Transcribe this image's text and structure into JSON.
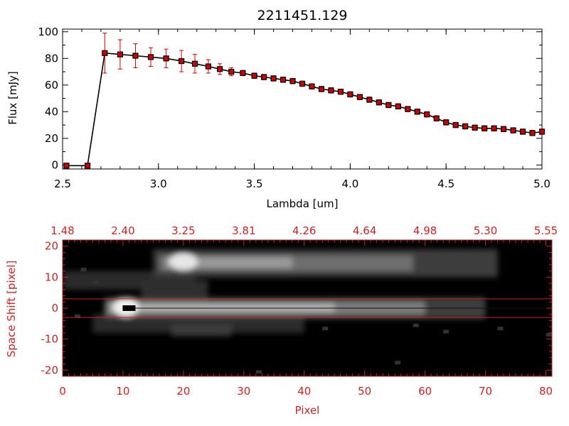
{
  "figure": {
    "title": "2211451.129"
  },
  "chart_data": [
    {
      "type": "line",
      "xlabel": "Lambda [um]",
      "ylabel": "Flux [mJy]",
      "xlim": [
        2.5,
        5.0
      ],
      "ylim": [
        -3,
        102
      ],
      "x_ticks": [
        {
          "value": 2.5,
          "label": "2.5"
        },
        {
          "value": 3.0,
          "label": "3.0"
        },
        {
          "value": 3.5,
          "label": "3.5"
        },
        {
          "value": 4.0,
          "label": "4.0"
        },
        {
          "value": 4.5,
          "label": "4.5"
        },
        {
          "value": 5.0,
          "label": "5.0"
        }
      ],
      "y_ticks": [
        {
          "value": 0,
          "label": "0"
        },
        {
          "value": 20,
          "label": "20"
        },
        {
          "value": 40,
          "label": "40"
        },
        {
          "value": 60,
          "label": "60"
        },
        {
          "value": 80,
          "label": "80"
        },
        {
          "value": 100,
          "label": "100"
        }
      ],
      "colors": {
        "line": "#000000",
        "marker": "#cc0000",
        "errorbar": "#cc0000",
        "axes": "#000000"
      },
      "series": [
        {
          "x": [
            2.52,
            2.63,
            2.72,
            2.8,
            2.88,
            2.96,
            3.04,
            3.12,
            3.19,
            3.26,
            3.32,
            3.38,
            3.44,
            3.5,
            3.55,
            3.6,
            3.65,
            3.7,
            3.75,
            3.8,
            3.85,
            3.9,
            3.95,
            4.0,
            4.05,
            4.1,
            4.15,
            4.2,
            4.25,
            4.3,
            4.35,
            4.4,
            4.45,
            4.5,
            4.55,
            4.6,
            4.65,
            4.7,
            4.75,
            4.8,
            4.85,
            4.9,
            4.95,
            5.0
          ],
          "y": [
            -0.5,
            -0.5,
            84,
            83,
            82,
            81,
            80,
            78,
            76,
            74,
            72,
            70,
            69,
            67,
            66,
            65,
            64,
            63,
            61,
            59,
            57,
            56,
            55,
            53,
            51,
            49,
            47,
            45,
            44,
            42,
            40,
            38,
            35,
            32,
            30,
            29,
            28,
            27.5,
            27.5,
            27,
            26,
            25,
            24,
            25
          ],
          "error": [
            0,
            0,
            15,
            11,
            9,
            7,
            7,
            8,
            7,
            5,
            4,
            3,
            2,
            2,
            2,
            2,
            2,
            2,
            2,
            2,
            2,
            2,
            2,
            2,
            2,
            2,
            2,
            2,
            2,
            2,
            2,
            2,
            2,
            2,
            2,
            2,
            2,
            2,
            2,
            2,
            2,
            2,
            2,
            2
          ]
        }
      ]
    },
    {
      "type": "heatmap",
      "xlabel": "Pixel",
      "ylabel": "Space Shift [pixel]",
      "xlim": [
        0,
        81
      ],
      "ylim": [
        -22,
        22
      ],
      "x_ticks": [
        {
          "value": 0,
          "label": "0"
        },
        {
          "value": 10,
          "label": "10"
        },
        {
          "value": 20,
          "label": "20"
        },
        {
          "value": 30,
          "label": "30"
        },
        {
          "value": 40,
          "label": "40"
        },
        {
          "value": 50,
          "label": "50"
        },
        {
          "value": 60,
          "label": "60"
        },
        {
          "value": 70,
          "label": "70"
        },
        {
          "value": 80,
          "label": "80"
        }
      ],
      "y_ticks": [
        {
          "value": 20,
          "label": "20"
        },
        {
          "value": 10,
          "label": "10"
        },
        {
          "value": 0,
          "label": "0"
        },
        {
          "value": -10,
          "label": "-10"
        },
        {
          "value": -20,
          "label": "-20"
        }
      ],
      "top_ticks": [
        {
          "value": 0,
          "label": "1.48"
        },
        {
          "value": 10,
          "label": "2.40"
        },
        {
          "value": 20,
          "label": "3.25"
        },
        {
          "value": 30,
          "label": "3.81"
        },
        {
          "value": 40,
          "label": "4.26"
        },
        {
          "value": 50,
          "label": "4.64"
        },
        {
          "value": 60,
          "label": "4.98"
        },
        {
          "value": 70,
          "label": "5.30"
        },
        {
          "value": 80,
          "label": "5.55"
        }
      ],
      "extraction_window": [
        -3,
        3
      ],
      "source_marker": {
        "x": 11,
        "y": 0
      },
      "colors": {
        "axes": "#cc2222",
        "background": "#000000",
        "window": "#cc2222"
      }
    }
  ]
}
